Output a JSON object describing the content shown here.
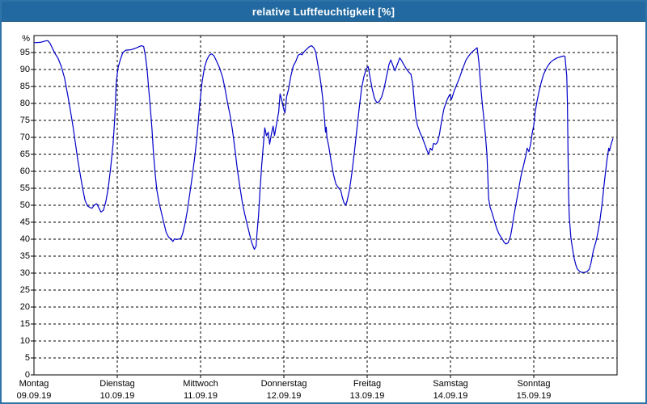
{
  "window": {
    "title": "relative Luftfeuchtigkeit [%]"
  },
  "colors": {
    "titlebar_bg": "#2169A0",
    "titlebar_border": "#1A527D",
    "titlebar_text": "#FFFFFF",
    "frame": "#2E74A8",
    "plot_bg": "#FFFFFF",
    "plot_border": "#000000",
    "grid": "#000000",
    "text": "#000000",
    "plot_line": "#0000C8"
  },
  "chart_data": {
    "type": "line",
    "title": "relative Luftfeuchtigkeit [%]",
    "ylabel": "%",
    "x_unit": "hours since Montag 00:00, 7 days total (168 h)",
    "ylim": [
      0,
      100
    ],
    "yticks": [
      0,
      5,
      10,
      15,
      20,
      25,
      30,
      35,
      40,
      45,
      50,
      55,
      60,
      65,
      70,
      75,
      80,
      85,
      90,
      95
    ],
    "grid": true,
    "legend": "none",
    "day_span_hours": 24,
    "days": [
      {
        "name": "Montag",
        "date": "09.09.19"
      },
      {
        "name": "Dienstag",
        "date": "10.09.19"
      },
      {
        "name": "Mittwoch",
        "date": "11.09.19"
      },
      {
        "name": "Donnerstag",
        "date": "12.09.19"
      },
      {
        "name": "Freitag",
        "date": "13.09.19"
      },
      {
        "name": "Samstag",
        "date": "14.09.19"
      },
      {
        "name": "Sonntag",
        "date": "15.09.19"
      }
    ],
    "series": [
      {
        "name": "relative Luftfeuchtigkeit [%]",
        "color": "#0000C8",
        "points": [
          [
            0,
            97.9
          ],
          [
            1.9,
            98
          ],
          [
            3.3,
            98.4
          ],
          [
            4,
            98.5
          ],
          [
            4.7,
            97.6
          ],
          [
            5.3,
            96.3
          ],
          [
            6,
            94.8
          ],
          [
            7,
            93.2
          ],
          [
            7.9,
            90.8
          ],
          [
            8.8,
            87.5
          ],
          [
            9.8,
            82
          ],
          [
            10.5,
            77.8
          ],
          [
            11.2,
            73.5
          ],
          [
            11.9,
            68.5
          ],
          [
            12.6,
            63.5
          ],
          [
            13.3,
            59.2
          ],
          [
            14,
            55.1
          ],
          [
            14.7,
            51.5
          ],
          [
            15.4,
            49.8
          ],
          [
            16,
            49.4
          ],
          [
            16.7,
            49.1
          ],
          [
            17.4,
            50.1
          ],
          [
            18.1,
            50.4
          ],
          [
            18.8,
            49
          ],
          [
            19.3,
            48
          ],
          [
            20,
            48.5
          ],
          [
            20.7,
            51
          ],
          [
            21.4,
            55
          ],
          [
            22.1,
            61
          ],
          [
            22.8,
            68
          ],
          [
            23.3,
            76
          ],
          [
            23.7,
            86
          ],
          [
            24.2,
            90.5
          ],
          [
            24.9,
            93
          ],
          [
            25.6,
            95
          ],
          [
            26.5,
            95.7
          ],
          [
            27.9,
            95.8
          ],
          [
            29.1,
            96.2
          ],
          [
            30,
            96.6
          ],
          [
            30.9,
            97
          ],
          [
            31.6,
            96.8
          ],
          [
            32.1,
            94
          ],
          [
            32.6,
            90
          ],
          [
            33,
            85
          ],
          [
            33.5,
            79
          ],
          [
            34,
            72.5
          ],
          [
            34.4,
            66
          ],
          [
            34.9,
            59.5
          ],
          [
            35.4,
            54.5
          ],
          [
            36.1,
            50.5
          ],
          [
            36.8,
            47.5
          ],
          [
            37.5,
            44.5
          ],
          [
            38.1,
            42
          ],
          [
            38.8,
            40.6
          ],
          [
            39.5,
            40
          ],
          [
            40,
            39.3
          ],
          [
            40.5,
            40.1
          ],
          [
            41.2,
            39.9
          ],
          [
            41.9,
            40.1
          ],
          [
            42.3,
            40.2
          ],
          [
            42.8,
            41.5
          ],
          [
            43.5,
            44.5
          ],
          [
            44.2,
            48.5
          ],
          [
            44.9,
            53.5
          ],
          [
            45.6,
            58.5
          ],
          [
            46.3,
            64
          ],
          [
            47,
            70.5
          ],
          [
            47.7,
            79
          ],
          [
            48.4,
            86
          ],
          [
            49.1,
            90.5
          ],
          [
            49.8,
            92.8
          ],
          [
            50.5,
            94.2
          ],
          [
            51.2,
            94.6
          ],
          [
            51.9,
            94
          ],
          [
            52.6,
            92.5
          ],
          [
            53.5,
            90.4
          ],
          [
            54.4,
            87.5
          ],
          [
            55.1,
            84
          ],
          [
            55.8,
            80
          ],
          [
            56.5,
            76.5
          ],
          [
            57.2,
            72
          ],
          [
            57.9,
            66.5
          ],
          [
            58.6,
            60.5
          ],
          [
            59.3,
            55.6
          ],
          [
            60,
            51
          ],
          [
            60.7,
            47.5
          ],
          [
            61.4,
            44.5
          ],
          [
            62.1,
            41.5
          ],
          [
            62.8,
            38.8
          ],
          [
            63.5,
            37
          ],
          [
            64,
            38
          ],
          [
            64.2,
            41
          ],
          [
            64.7,
            47
          ],
          [
            65.1,
            54
          ],
          [
            65.6,
            61.5
          ],
          [
            66.1,
            68
          ],
          [
            66.5,
            72.8
          ],
          [
            67,
            70.5
          ],
          [
            67.5,
            71.5
          ],
          [
            67.9,
            68
          ],
          [
            68.4,
            71
          ],
          [
            68.9,
            73.3
          ],
          [
            69.3,
            70.5
          ],
          [
            69.8,
            73.5
          ],
          [
            70.5,
            77.5
          ],
          [
            70.9,
            82.8
          ],
          [
            71.4,
            81
          ],
          [
            71.9,
            78.5
          ],
          [
            72.3,
            77.2
          ],
          [
            72.8,
            82
          ],
          [
            73.3,
            84
          ],
          [
            74,
            88
          ],
          [
            74.7,
            91
          ],
          [
            75.4,
            92.3
          ],
          [
            76.1,
            94.2
          ],
          [
            76.8,
            94.6
          ],
          [
            77.2,
            94.3
          ],
          [
            77.9,
            95.3
          ],
          [
            78.6,
            96
          ],
          [
            79.3,
            96.7
          ],
          [
            80,
            97
          ],
          [
            80.7,
            96.3
          ],
          [
            81.2,
            95
          ],
          [
            81.6,
            92.5
          ],
          [
            82.3,
            88.5
          ],
          [
            82.8,
            85
          ],
          [
            83.3,
            80.5
          ],
          [
            83.7,
            75.5
          ],
          [
            84,
            71.5
          ],
          [
            84.2,
            73
          ],
          [
            84.4,
            70
          ],
          [
            84.9,
            67.5
          ],
          [
            85.6,
            63
          ],
          [
            86.3,
            59
          ],
          [
            87,
            56.2
          ],
          [
            87.7,
            55.2
          ],
          [
            88.4,
            54.3
          ],
          [
            88.8,
            52.5
          ],
          [
            89.3,
            50.8
          ],
          [
            89.8,
            50
          ],
          [
            90.2,
            51.2
          ],
          [
            90.9,
            54.5
          ],
          [
            91.6,
            59.5
          ],
          [
            92.3,
            65.5
          ],
          [
            93,
            72
          ],
          [
            93.7,
            78.5
          ],
          [
            94.4,
            84.5
          ],
          [
            95.1,
            88
          ],
          [
            95.8,
            90.3
          ],
          [
            96.3,
            90.8
          ],
          [
            96.7,
            88.5
          ],
          [
            97.4,
            84.5
          ],
          [
            98.1,
            81.5
          ],
          [
            98.8,
            80.2
          ],
          [
            99.5,
            80.6
          ],
          [
            100.2,
            82
          ],
          [
            100.9,
            84.5
          ],
          [
            101.6,
            88
          ],
          [
            102.3,
            91.5
          ],
          [
            102.8,
            92.8
          ],
          [
            103.3,
            91.5
          ],
          [
            104,
            89.6
          ],
          [
            104.7,
            91.5
          ],
          [
            105.4,
            93.4
          ],
          [
            105.8,
            92.8
          ],
          [
            106.5,
            91.5
          ],
          [
            107.2,
            90.3
          ],
          [
            107.9,
            89.3
          ],
          [
            108.6,
            88.6
          ],
          [
            109.1,
            86
          ],
          [
            109.5,
            81.5
          ],
          [
            110,
            76
          ],
          [
            110.5,
            73.5
          ],
          [
            111.2,
            71.5
          ],
          [
            111.9,
            69.9
          ],
          [
            112.6,
            68
          ],
          [
            113.3,
            66
          ],
          [
            113.7,
            65
          ],
          [
            114.2,
            66.8
          ],
          [
            114.7,
            66.2
          ],
          [
            115.1,
            68.2
          ],
          [
            115.8,
            68
          ],
          [
            116.3,
            68.6
          ],
          [
            116.8,
            70.8
          ],
          [
            117.4,
            74.5
          ],
          [
            118.1,
            78.3
          ],
          [
            118.8,
            80.5
          ],
          [
            119.3,
            81.7
          ],
          [
            119.8,
            82.6
          ],
          [
            120.3,
            81.2
          ],
          [
            121,
            83.5
          ],
          [
            121.7,
            85.3
          ],
          [
            122.4,
            87
          ],
          [
            123.1,
            89
          ],
          [
            123.8,
            91
          ],
          [
            124.5,
            92.8
          ],
          [
            125.2,
            93.9
          ],
          [
            125.9,
            94.8
          ],
          [
            126.6,
            95.5
          ],
          [
            127.3,
            96.1
          ],
          [
            127.7,
            96.4
          ],
          [
            128.2,
            92
          ],
          [
            128.7,
            85.3
          ],
          [
            129.1,
            80.5
          ],
          [
            129.6,
            75.7
          ],
          [
            130,
            71.5
          ],
          [
            130.5,
            65
          ],
          [
            131,
            52
          ],
          [
            131.4,
            49.5
          ],
          [
            131.9,
            48
          ],
          [
            132.6,
            45.6
          ],
          [
            133.3,
            43.2
          ],
          [
            134,
            41.5
          ],
          [
            134.7,
            40.4
          ],
          [
            135.4,
            39.2
          ],
          [
            135.9,
            38.6
          ],
          [
            136.6,
            38.9
          ],
          [
            137.3,
            40.8
          ],
          [
            137.7,
            43.2
          ],
          [
            138.2,
            46.5
          ],
          [
            138.9,
            50.5
          ],
          [
            139.6,
            54.5
          ],
          [
            140.3,
            58.5
          ],
          [
            141,
            61.5
          ],
          [
            141.7,
            64.5
          ],
          [
            142.1,
            66.8
          ],
          [
            142.6,
            65.8
          ],
          [
            143.1,
            68
          ],
          [
            143.5,
            71
          ],
          [
            144,
            73.5
          ],
          [
            144.4,
            77.5
          ],
          [
            144.9,
            80.5
          ],
          [
            145.4,
            83
          ],
          [
            146.1,
            86
          ],
          [
            146.8,
            88.5
          ],
          [
            147.5,
            90
          ],
          [
            148.2,
            91.3
          ],
          [
            148.9,
            92.2
          ],
          [
            149.8,
            92.9
          ],
          [
            150.7,
            93.4
          ],
          [
            151.6,
            93.7
          ],
          [
            152.6,
            94
          ],
          [
            153,
            93.8
          ],
          [
            153.5,
            88
          ],
          [
            153.7,
            80
          ],
          [
            154,
            55
          ],
          [
            154.2,
            47
          ],
          [
            154.7,
            40.4
          ],
          [
            155.1,
            37.7
          ],
          [
            155.6,
            34.5
          ],
          [
            156.1,
            32.5
          ],
          [
            156.5,
            31.3
          ],
          [
            157.2,
            30.5
          ],
          [
            157.9,
            30.2
          ],
          [
            158.6,
            30.2
          ],
          [
            159.3,
            30.4
          ],
          [
            160,
            31.2
          ],
          [
            160.5,
            33
          ],
          [
            161.2,
            36.8
          ],
          [
            161.9,
            39.2
          ],
          [
            162.3,
            41
          ],
          [
            163,
            45
          ],
          [
            163.7,
            50.5
          ],
          [
            164.4,
            57.5
          ],
          [
            165.1,
            63.5
          ],
          [
            165.6,
            66.8
          ],
          [
            165.8,
            66
          ],
          [
            166.3,
            68
          ],
          [
            166.8,
            69.7
          ]
        ]
      }
    ]
  }
}
